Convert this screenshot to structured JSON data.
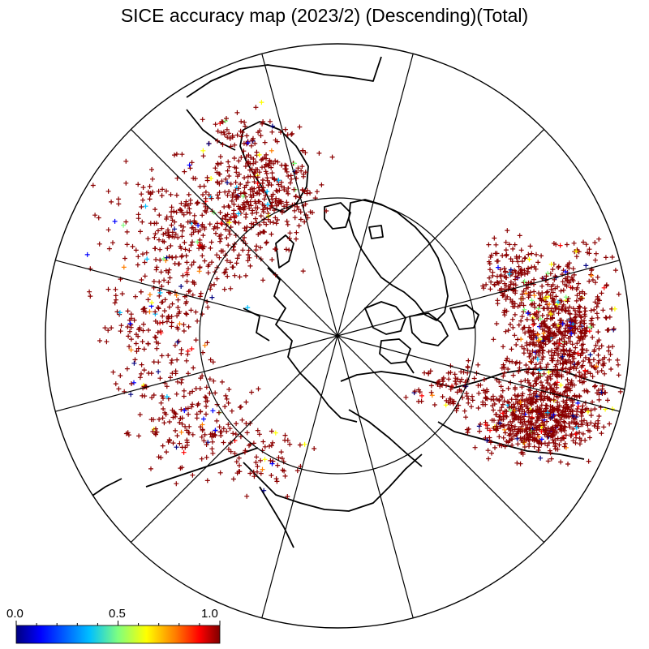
{
  "title": "SICE accuracy map (2023/2) (Descending)(Total)",
  "colorbar": {
    "labels": [
      "0.0",
      "0.5",
      "1.0"
    ],
    "min": 0.0,
    "max": 1.0,
    "colors": [
      "#00007f",
      "#0000ff",
      "#00bfff",
      "#7fff7f",
      "#ffff00",
      "#ff7f00",
      "#ff0000",
      "#7f0000"
    ]
  },
  "map": {
    "projection": "polar stereographic, north pole centered",
    "graticule_meridians": 12,
    "graticule_parallel_count": 1,
    "marker": "plus",
    "dominant_marker_color": "#8b0000"
  }
}
